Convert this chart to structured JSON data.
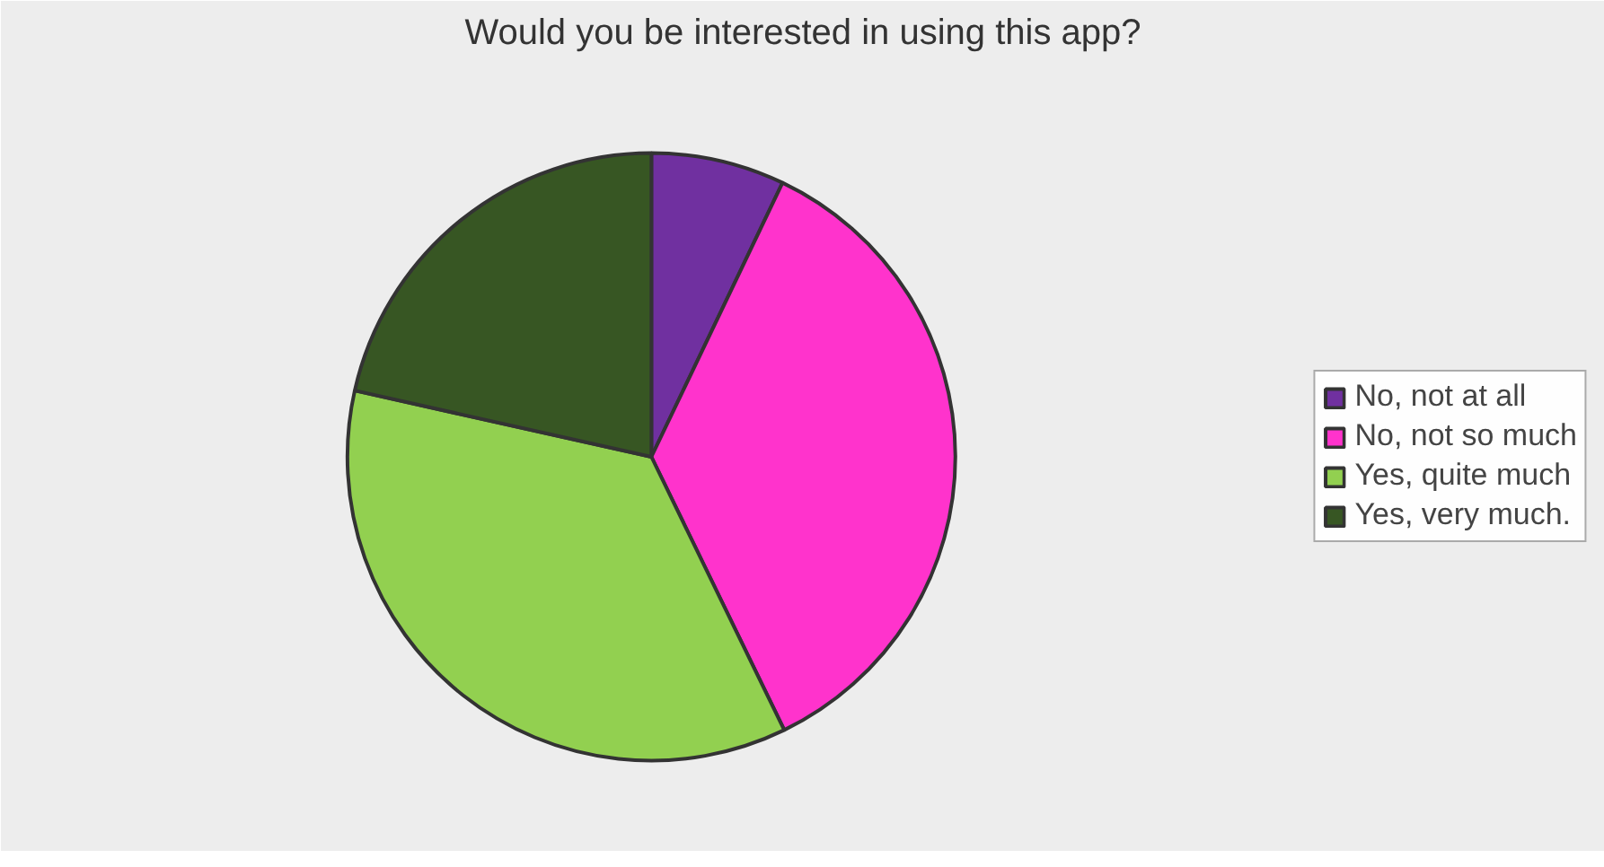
{
  "chart_data": {
    "type": "pie",
    "title": "Would you be interested in using this app?",
    "categories": [
      "No, not at all",
      "No, not so much",
      "Yes, quite much",
      "Yes, very much."
    ],
    "values": [
      7.1,
      35.7,
      35.7,
      21.5
    ],
    "colors": [
      "#7030a0",
      "#ff33cc",
      "#92d050",
      "#375623"
    ],
    "legend": "right"
  }
}
